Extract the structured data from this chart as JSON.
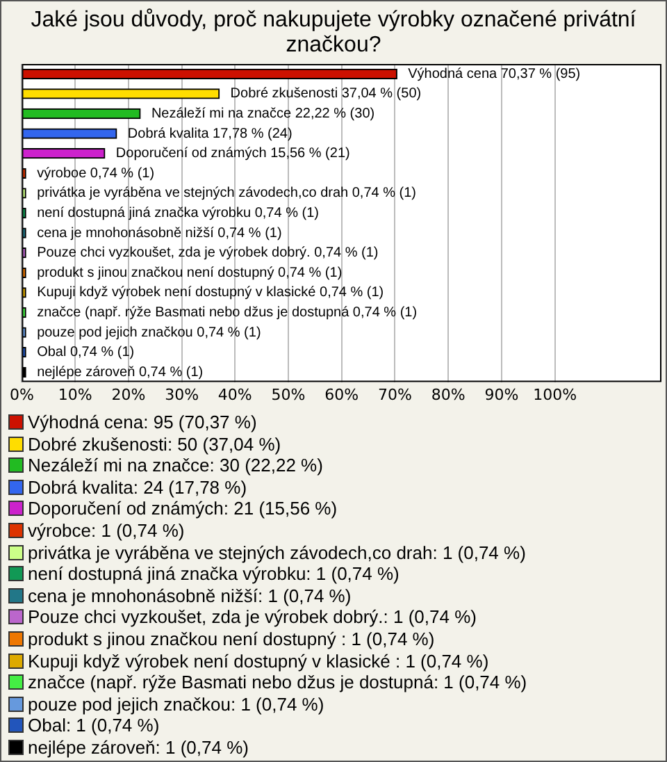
{
  "chart_data": {
    "type": "bar",
    "orientation": "horizontal",
    "title": "Jaké jsou důvody, proč nakupujete výrobky označené privátní značkou?",
    "categories": [
      "Výhodná cena",
      "Dobré zkušenosti",
      "Nezáleží mi na značce",
      "Dobrá kvalita",
      "Doporučení od známých",
      "výroboe",
      "privátka je vyráběna ve stejných závodech,co drah",
      "není dostupná jiná značka výrobku",
      "cena je mnohonásobně nižší",
      "Pouze chci vyzkoušet, zda je výrobek dobrý.",
      "produkt s jinou značkou není dostupný",
      "Kupuji když výrobek není dostupný v klasické",
      "značce (např. rýže Basmati nebo džus je dostupná",
      "pouze pod jejich značkou",
      "Obal",
      "nejlépe zároveň"
    ],
    "values": [
      70.37,
      37.04,
      22.22,
      17.78,
      15.56,
      0.74,
      0.74,
      0.74,
      0.74,
      0.74,
      0.74,
      0.74,
      0.74,
      0.74,
      0.74,
      0.74
    ],
    "value_labels": [
      "70,37 % (95)",
      "37,04 % (50)",
      "22,22 % (30)",
      "17,78 % (24)",
      "15,56 % (21)",
      "0,74 % (1)",
      "0,74 % (1)",
      "0,74 % (1)",
      "0,74 % (1)",
      "0,74 % (1)",
      "0,74 % (1)",
      "0,74 % (1)",
      "0,74 % (1)",
      "0,74 % (1)",
      "0,74 % (1)",
      "0,74 % (1)"
    ],
    "colors": [
      "#cc1100",
      "#ffdd00",
      "#22bb22",
      "#3366ee",
      "#cc22cc",
      "#dd3300",
      "#ccff88",
      "#119955",
      "#227788",
      "#bb66cc",
      "#ee7700",
      "#ddaa00",
      "#44ee44",
      "#6699dd",
      "#2255bb",
      "#000000"
    ],
    "xlim": [
      0,
      120
    ],
    "xticks": [
      {
        "value": 0,
        "label": "0%"
      },
      {
        "value": 10,
        "label": "10%"
      },
      {
        "value": 20,
        "label": "20%"
      },
      {
        "value": 30,
        "label": "30%"
      },
      {
        "value": 40,
        "label": "40%"
      },
      {
        "value": 50,
        "label": "50%"
      },
      {
        "value": 60,
        "label": "60%"
      },
      {
        "value": 70,
        "label": "70%"
      },
      {
        "value": 80,
        "label": "80%"
      },
      {
        "value": 90,
        "label": "90%"
      },
      {
        "value": 100,
        "label": "100%"
      }
    ],
    "grid": "x",
    "tick_labels": "x",
    "annotations": [
      "Výhodná cena: 95 (70,37 %)",
      "Dobré zkušenosti: 50 (37,04 %)",
      "Nezáleží mi na značce: 30 (22,22 %)",
      "Dobrá kvalita: 24 (17,78 %)",
      "Doporučení od známých: 21 (15,56 %)",
      "výrobce: 1 (0,74 %)",
      "privátka je vyráběna ve stejných závodech,co drah: 1 (0,74 %)",
      "není dostupná jiná značka výrobku: 1 (0,74 %)",
      "cena je mnohonásobně nižší: 1 (0,74 %)",
      "Pouze chci vyzkoušet, zda je výrobek dobrý.: 1 (0,74 %)",
      "produkt s jinou značkou není dostupný : 1 (0,74 %)",
      "Kupuji když výrobek není dostupný v klasické : 1 (0,74 %)",
      "značce (např. rýže Basmati nebo džus je dostupná: 1 (0,74 %)",
      "pouze pod jejich značkou: 1 (0,74 %)",
      "Obal: 1 (0,74 %)",
      "nejlépe zároveň: 1 (0,74 %)"
    ]
  }
}
